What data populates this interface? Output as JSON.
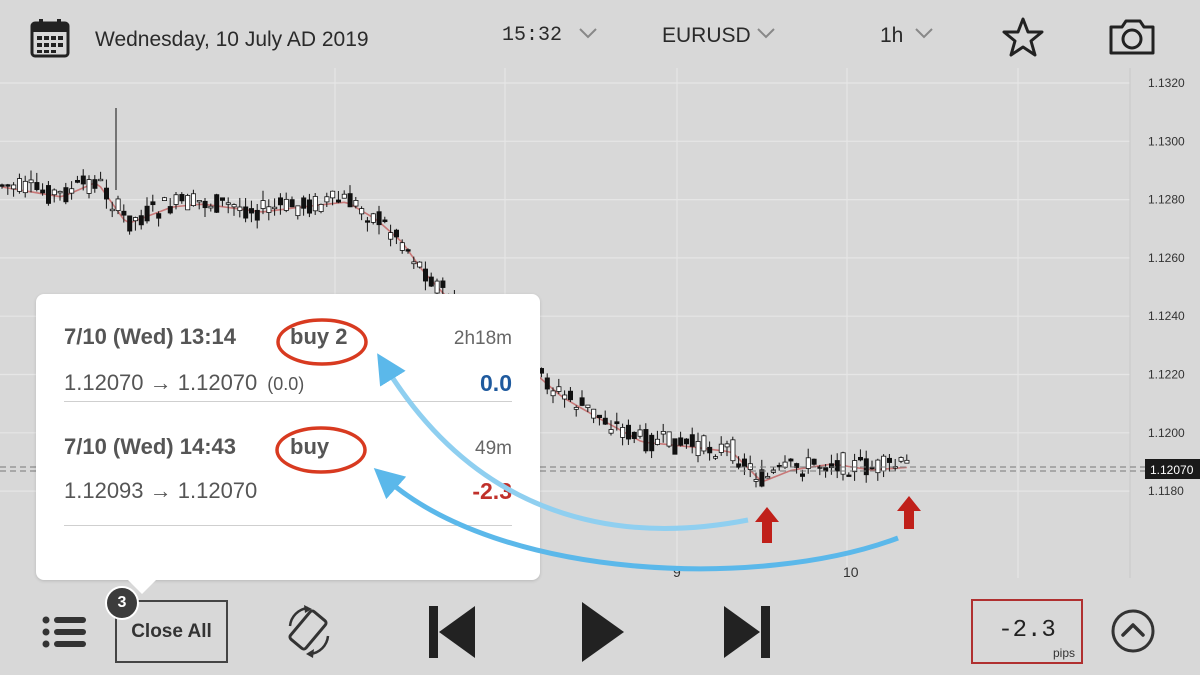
{
  "topbar": {
    "date": "Wednesday, 10 July AD 2019",
    "time": "15:32",
    "symbol": "EURUSD",
    "timeframe": "1h"
  },
  "chart_data": {
    "type": "candlestick",
    "y_ticks": [
      "1.1320",
      "1.1300",
      "1.1280",
      "1.1260",
      "1.1240",
      "1.1220",
      "1.1200",
      "1.1180"
    ],
    "ylim": [
      1.1175,
      1.1333
    ],
    "x_ticks": [
      {
        "label": "9"
      },
      {
        "label": "10"
      }
    ],
    "current_price": "1.12070",
    "ma_color": "#c87878",
    "markers": [
      "buy-arrow",
      "buy-arrow"
    ]
  },
  "popup": {
    "trades": [
      {
        "datetime": "7/10 (Wed) 13:14",
        "side": "buy 2",
        "duration": "2h18m",
        "prices": "1.12070 → 1.12070",
        "diff": "(0.0)",
        "pips": "0.0",
        "pips_color": "#1f5a9e"
      },
      {
        "datetime": "7/10 (Wed) 14:43",
        "side": "buy",
        "duration": "49m",
        "prices": "1.12093 → 1.12070",
        "diff": "",
        "pips": "-2.3",
        "pips_color": "#c0302a"
      }
    ]
  },
  "bottombar": {
    "badge_count": "3",
    "close_all_label": "Close All",
    "pips_value": "-2.3",
    "pips_unit": "pips"
  },
  "annotations": {
    "highlight_color": "#d83a20",
    "arrow_color": "#5bb8ea",
    "marker_color": "#c0201a"
  }
}
